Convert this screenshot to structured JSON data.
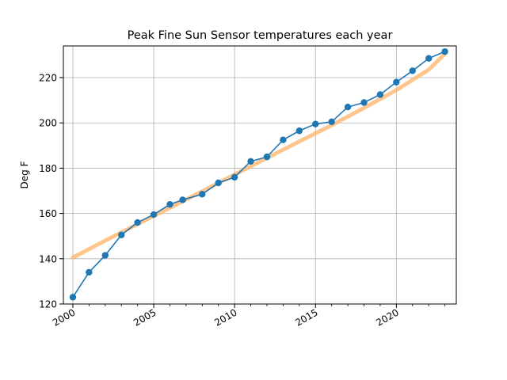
{
  "chart_data": {
    "type": "line",
    "title": "Peak Fine Sun Sensor temperatures each year",
    "xlabel": "",
    "ylabel": "Deg F",
    "grid": true,
    "xlim": [
      "1999-06-01",
      "2023-09-15"
    ],
    "ylim": [
      120,
      234
    ],
    "x_ticks": [
      "2000",
      "2005",
      "2010",
      "2015",
      "2020"
    ],
    "y_ticks": [
      120,
      140,
      160,
      180,
      200,
      220
    ],
    "colors": {
      "data": "#1f77b4",
      "fit": "#ffbb78",
      "grid": "#b0b0b0"
    },
    "series": [
      {
        "style": "line-marker",
        "x": [
          "2000-01-01",
          "2000-12-31",
          "2002-01-01",
          "2003-01-01",
          "2004-01-01",
          "2004-12-31",
          "2006-01-01",
          "2006-10-15",
          "2007-12-31",
          "2008-12-31",
          "2009-12-31",
          "2010-12-31",
          "2012-01-01",
          "2013-01-01",
          "2014-01-01",
          "2014-12-31",
          "2016-01-01",
          "2016-12-31",
          "2018-01-01",
          "2018-12-31",
          "2019-12-31",
          "2020-12-31",
          "2022-01-01",
          "2022-12-31"
        ],
        "values": [
          123,
          134,
          141.5,
          150.5,
          156,
          159.5,
          164,
          166,
          168.5,
          173.5,
          176,
          183,
          185,
          192.5,
          196.5,
          199.5,
          200.5,
          207,
          209,
          212.5,
          218,
          223,
          228.5,
          231.5
        ]
      },
      {
        "style": "fit-line",
        "x": [
          "2000-01-01",
          "2002-01-01",
          "2004-01-01",
          "2006-01-01",
          "2008-01-01",
          "2010-01-01",
          "2012-01-01",
          "2014-01-01",
          "2016-01-01",
          "2018-01-01",
          "2020-01-01",
          "2022-01-01",
          "2022-12-31"
        ],
        "values": [
          140.5,
          148,
          155.3,
          162.5,
          169.8,
          177.2,
          184.5,
          191.8,
          199,
          206.6,
          214.5,
          223.5,
          230.5
        ]
      }
    ]
  }
}
